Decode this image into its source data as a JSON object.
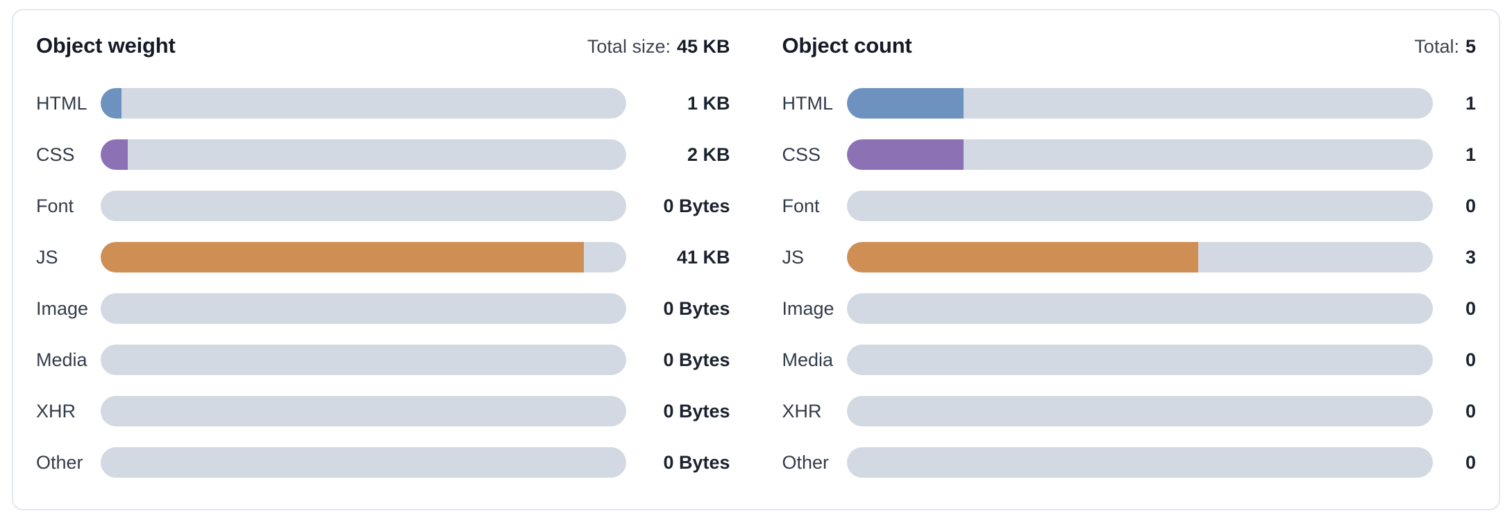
{
  "colors": {
    "html_blue": "#6E92C0",
    "css_purple": "#8D71B5",
    "js_orange": "#CF8E54",
    "track_gray": "#D3D9E2",
    "card_border": "#E3E7F1",
    "title_text": "#151B26",
    "label_text": "#333B48",
    "value_text": "#1B222E"
  },
  "panels": [
    {
      "title": "Object weight",
      "total_label": "Total size:",
      "total_value": "45 KB",
      "rows": [
        {
          "label": "HTML",
          "value": "1 KB",
          "pct": 3.9,
          "color": "#6E92C0"
        },
        {
          "label": "CSS",
          "value": "2 KB",
          "pct": 5.1,
          "color": "#8D71B5"
        },
        {
          "label": "Font",
          "value": "0 Bytes",
          "pct": 0,
          "color": "#D3D9E2"
        },
        {
          "label": "JS",
          "value": "41 KB",
          "pct": 92,
          "color": "#CF8E54"
        },
        {
          "label": "Image",
          "value": "0 Bytes",
          "pct": 0,
          "color": "#D3D9E2"
        },
        {
          "label": "Media",
          "value": "0 Bytes",
          "pct": 0,
          "color": "#D3D9E2"
        },
        {
          "label": "XHR",
          "value": "0 Bytes",
          "pct": 0,
          "color": "#D3D9E2"
        },
        {
          "label": "Other",
          "value": "0 Bytes",
          "pct": 0,
          "color": "#D3D9E2"
        }
      ]
    },
    {
      "title": "Object count",
      "total_label": "Total:",
      "total_value": "5",
      "rows": [
        {
          "label": "HTML",
          "value": "1",
          "pct": 20,
          "color": "#6E92C0"
        },
        {
          "label": "CSS",
          "value": "1",
          "pct": 20,
          "color": "#8D71B5"
        },
        {
          "label": "Font",
          "value": "0",
          "pct": 0,
          "color": "#D3D9E2"
        },
        {
          "label": "JS",
          "value": "3",
          "pct": 60,
          "color": "#CF8E54"
        },
        {
          "label": "Image",
          "value": "0",
          "pct": 0,
          "color": "#D3D9E2"
        },
        {
          "label": "Media",
          "value": "0",
          "pct": 0,
          "color": "#D3D9E2"
        },
        {
          "label": "XHR",
          "value": "0",
          "pct": 0,
          "color": "#D3D9E2"
        },
        {
          "label": "Other",
          "value": "0",
          "pct": 0,
          "color": "#D3D9E2"
        }
      ]
    }
  ],
  "chart_data": [
    {
      "type": "bar",
      "orientation": "horizontal",
      "title": "Object weight",
      "total_label": "Total size: 45 KB",
      "categories": [
        "HTML",
        "CSS",
        "Font",
        "JS",
        "Image",
        "Media",
        "XHR",
        "Other"
      ],
      "values": [
        1,
        2,
        0,
        41,
        0,
        0,
        0,
        0
      ],
      "unit": "KB",
      "value_labels": [
        "1 KB",
        "2 KB",
        "0 Bytes",
        "41 KB",
        "0 Bytes",
        "0 Bytes",
        "0 Bytes",
        "0 Bytes"
      ],
      "total": 45,
      "xlim": [
        0,
        45
      ],
      "bar_colors": [
        "#6E92C0",
        "#8D71B5",
        "#D3D9E2",
        "#CF8E54",
        "#D3D9E2",
        "#D3D9E2",
        "#D3D9E2",
        "#D3D9E2"
      ],
      "grid": false,
      "legend": false
    },
    {
      "type": "bar",
      "orientation": "horizontal",
      "title": "Object count",
      "total_label": "Total: 5",
      "categories": [
        "HTML",
        "CSS",
        "Font",
        "JS",
        "Image",
        "Media",
        "XHR",
        "Other"
      ],
      "values": [
        1,
        1,
        0,
        3,
        0,
        0,
        0,
        0
      ],
      "unit": "count",
      "value_labels": [
        "1",
        "1",
        "0",
        "3",
        "0",
        "0",
        "0",
        "0"
      ],
      "total": 5,
      "xlim": [
        0,
        5
      ],
      "bar_colors": [
        "#6E92C0",
        "#8D71B5",
        "#D3D9E2",
        "#CF8E54",
        "#D3D9E2",
        "#D3D9E2",
        "#D3D9E2",
        "#D3D9E2"
      ],
      "grid": false,
      "legend": false
    }
  ]
}
